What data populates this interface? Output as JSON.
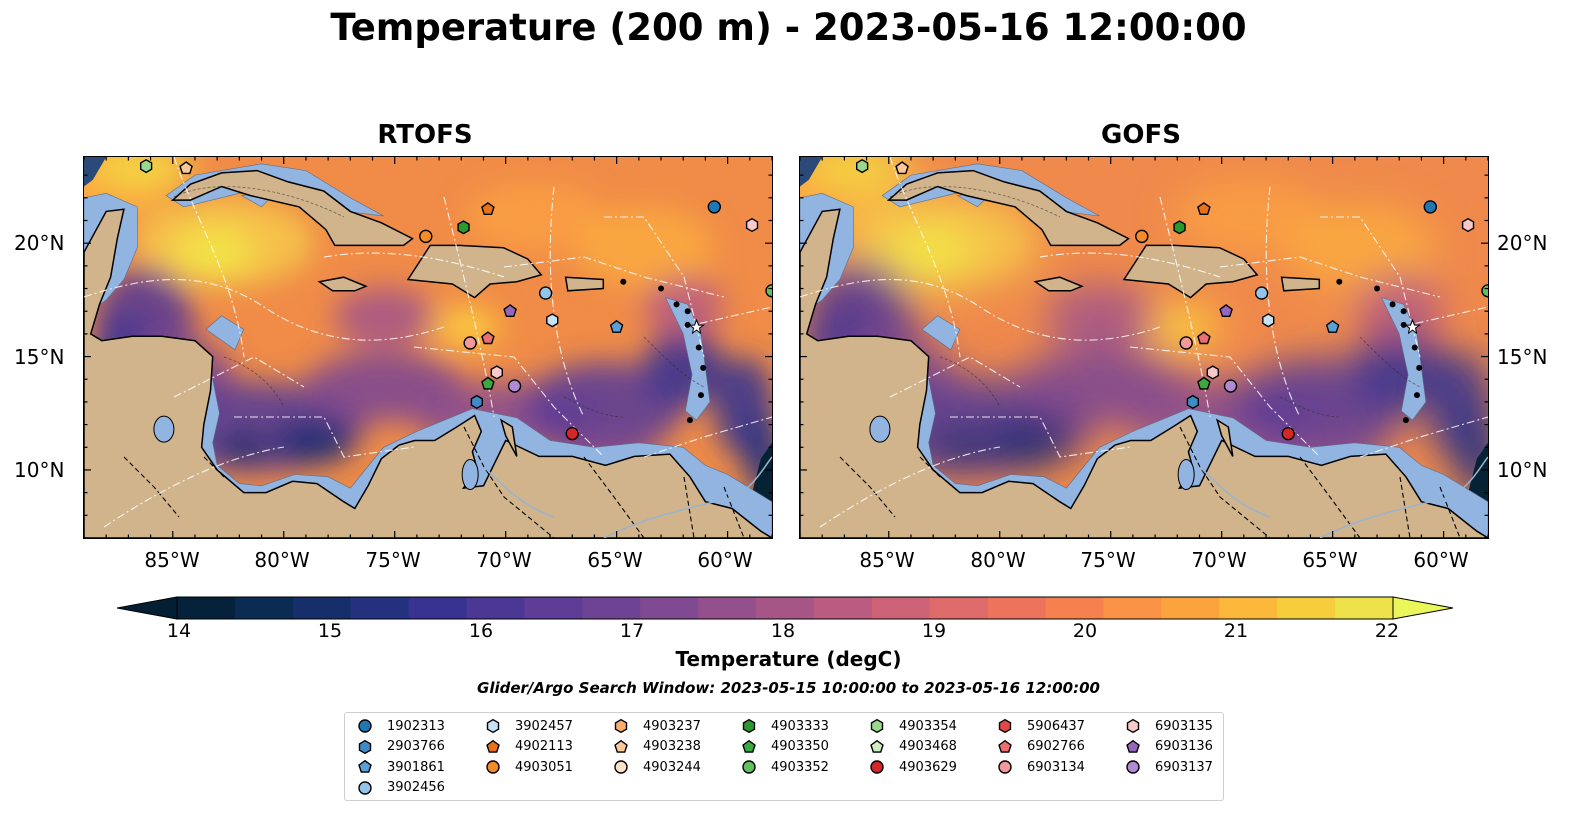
{
  "title": "Temperature (200 m) - 2023-05-16 12:00:00",
  "panels": [
    {
      "title": "RTOFS"
    },
    {
      "title": "GOFS"
    }
  ],
  "axes": {
    "lat_labels": [
      "20°N",
      "15°N",
      "10°N"
    ],
    "lon_labels": [
      "85°W",
      "80°W",
      "75°W",
      "70°W",
      "65°W",
      "60°W"
    ]
  },
  "colorbar": {
    "label": "Temperature (degC)",
    "ticks": [
      "14",
      "15",
      "16",
      "17",
      "18",
      "19",
      "20",
      "21",
      "22"
    ],
    "min": 14,
    "max": 22,
    "extend": "both",
    "colors": [
      "#05223a",
      "#0c2b52",
      "#162f6a",
      "#24317f",
      "#383390",
      "#4a3894",
      "#5d3d95",
      "#6e4394",
      "#804a91",
      "#93508c",
      "#a65686",
      "#b95c7f",
      "#cc6276",
      "#de6a6a",
      "#ec745c",
      "#f5824e",
      "#f99244",
      "#fba43d",
      "#fbb83a",
      "#f6cd3d",
      "#ede24a"
    ],
    "under_color": "#041f33",
    "over_color": "#eaf65a"
  },
  "subtitle": "Glider/Argo Search Window: 2023-05-15 10:00:00 to 2023-05-16 12:00:00",
  "legend": [
    {
      "id": "1902313",
      "marker": "circle",
      "color": "#1f77b4"
    },
    {
      "id": "2903766",
      "marker": "hexagon",
      "color": "#3d8bc7"
    },
    {
      "id": "3901861",
      "marker": "pentagon",
      "color": "#5aa0d6"
    },
    {
      "id": "3902456",
      "marker": "circle",
      "color": "#94c4e8"
    },
    {
      "id": "3902457",
      "marker": "hexagon",
      "color": "#c7e1f5"
    },
    {
      "id": "4902113",
      "marker": "pentagon",
      "color": "#e8711c"
    },
    {
      "id": "4903051",
      "marker": "circle",
      "color": "#f48c2a"
    },
    {
      "id": "4903237",
      "marker": "hexagon",
      "color": "#fbae6b"
    },
    {
      "id": "4903238",
      "marker": "pentagon",
      "color": "#fcc898"
    },
    {
      "id": "4903244",
      "marker": "circle",
      "color": "#fde2c8"
    },
    {
      "id": "4903333",
      "marker": "hexagon",
      "color": "#2a9a2f"
    },
    {
      "id": "4903350",
      "marker": "pentagon",
      "color": "#3aaa3e"
    },
    {
      "id": "4903352",
      "marker": "circle",
      "color": "#62c05f"
    },
    {
      "id": "4903354",
      "marker": "hexagon",
      "color": "#9ad98c"
    },
    {
      "id": "4903468",
      "marker": "pentagon",
      "color": "#cdeec0"
    },
    {
      "id": "4903629",
      "marker": "circle",
      "color": "#d62728"
    },
    {
      "id": "5906437",
      "marker": "hexagon",
      "color": "#e04848"
    },
    {
      "id": "6902766",
      "marker": "pentagon",
      "color": "#ec6f6f"
    },
    {
      "id": "6903134",
      "marker": "circle",
      "color": "#f29a9a"
    },
    {
      "id": "6903135",
      "marker": "hexagon",
      "color": "#f9c8c8"
    },
    {
      "id": "6903136",
      "marker": "pentagon",
      "color": "#9467bd"
    },
    {
      "id": "6903137",
      "marker": "circle",
      "color": "#b08ad3"
    }
  ],
  "floats": [
    {
      "id": "4903354",
      "lon": -86.2,
      "lat": 23.4
    },
    {
      "id": "4903238",
      "lon": -84.4,
      "lat": 23.3
    },
    {
      "id": "1902313",
      "lon": -60.6,
      "lat": 21.6
    },
    {
      "id": "6903135",
      "lon": -58.9,
      "lat": 20.8
    },
    {
      "id": "4902113",
      "lon": -70.8,
      "lat": 21.5
    },
    {
      "id": "4903333",
      "lon": -71.9,
      "lat": 20.7
    },
    {
      "id": "4903051",
      "lon": -73.6,
      "lat": 20.3
    },
    {
      "id": "3902456",
      "lon": -68.2,
      "lat": 17.8
    },
    {
      "id": "3902457",
      "lon": -67.9,
      "lat": 16.6
    },
    {
      "id": "3901861",
      "lon": -65.0,
      "lat": 16.3
    },
    {
      "id": "6903136",
      "lon": -69.8,
      "lat": 17.0
    },
    {
      "id": "6903134",
      "lon": -71.6,
      "lat": 15.6
    },
    {
      "id": "6902766",
      "lon": -70.8,
      "lat": 15.8
    },
    {
      "id": "6903135",
      "lon": -70.4,
      "lat": 14.3
    },
    {
      "id": "4903350",
      "lon": -70.8,
      "lat": 13.8
    },
    {
      "id": "6903137",
      "lon": -69.6,
      "lat": 13.7
    },
    {
      "id": "2903766",
      "lon": -71.3,
      "lat": 13.0
    },
    {
      "id": "4903629",
      "lon": -67.0,
      "lat": 11.6
    },
    {
      "id": "4903352",
      "lon": -58.0,
      "lat": 17.9
    }
  ]
}
